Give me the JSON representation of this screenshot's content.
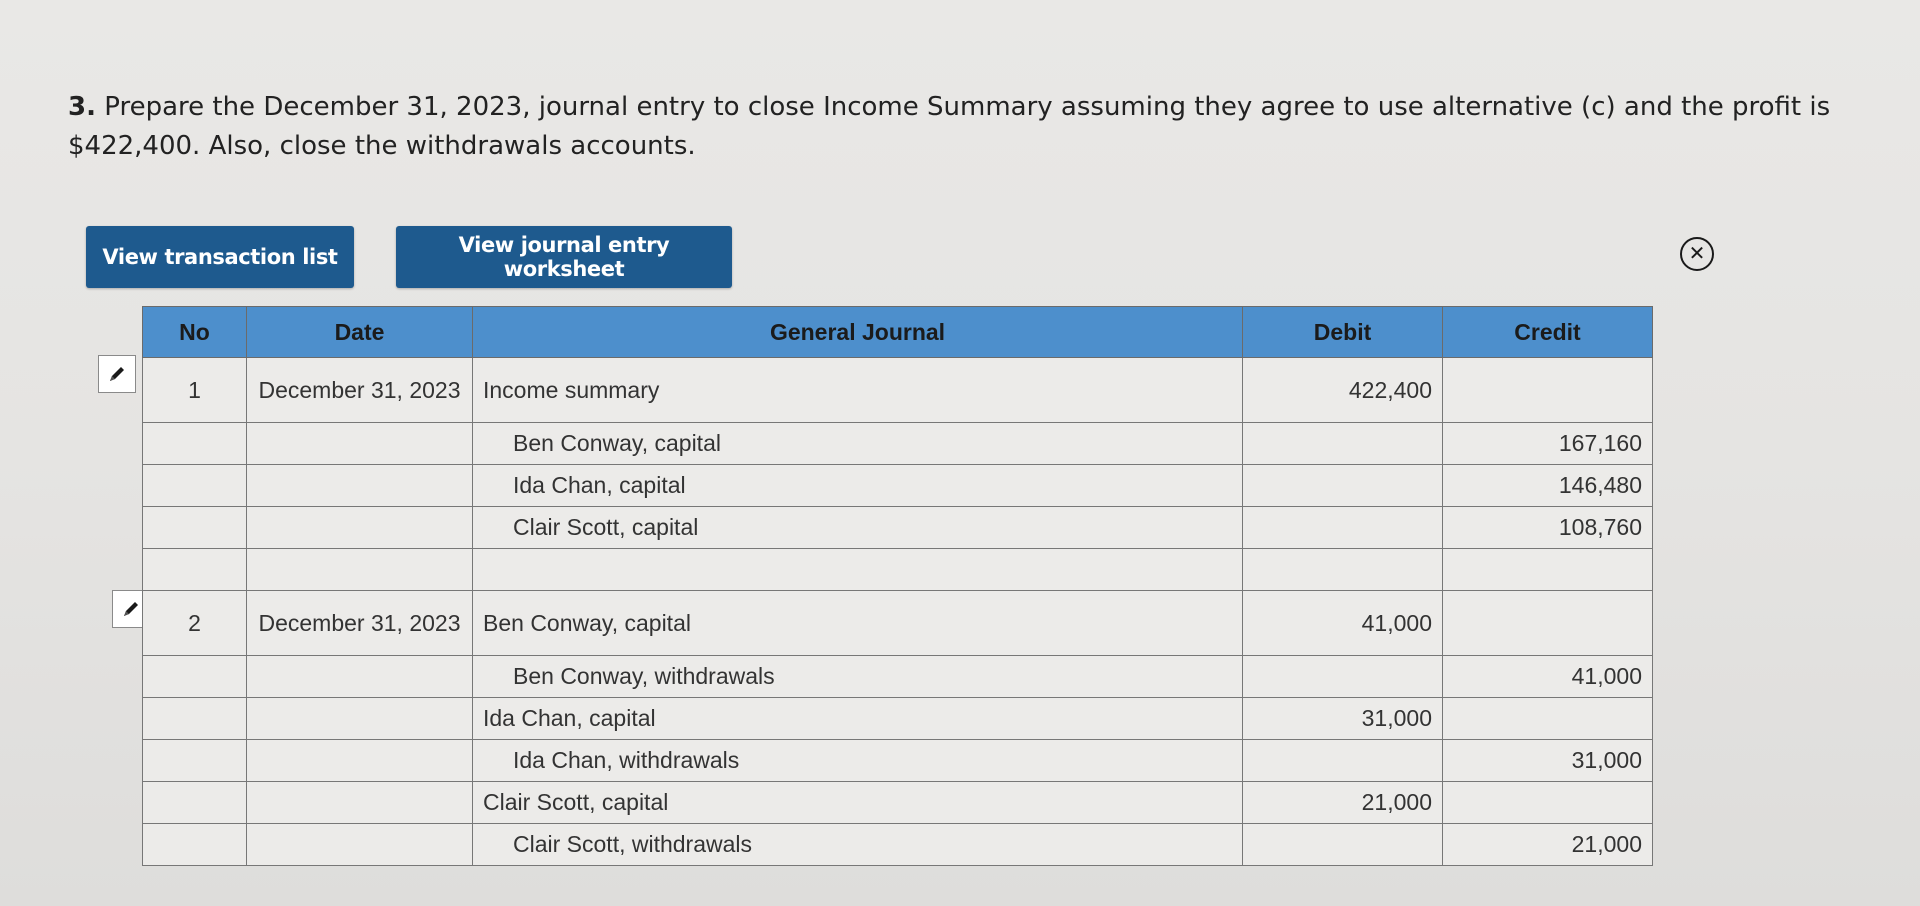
{
  "question": {
    "number": "3.",
    "text": "Prepare the December 31, 2023, journal entry to close Income Summary assuming they agree to use alternative (c) and the profit is $422,400. Also, close the withdrawals accounts."
  },
  "toolbar": {
    "view_transaction_list": "View transaction list",
    "view_journal_worksheet": "View journal entry worksheet"
  },
  "icons": {
    "close": "close-circle-icon",
    "edit": "pencil-icon"
  },
  "table": {
    "headers": {
      "no": "No",
      "date": "Date",
      "general_journal": "General Journal",
      "debit": "Debit",
      "credit": "Credit"
    },
    "rows": [
      {
        "no": "1",
        "date": "December 31, 2023",
        "account": "Income summary",
        "debit": "422,400",
        "credit": ""
      },
      {
        "no": "",
        "date": "",
        "account": "Ben Conway, capital",
        "debit": "",
        "credit": "167,160"
      },
      {
        "no": "",
        "date": "",
        "account": "Ida Chan, capital",
        "debit": "",
        "credit": "146,480"
      },
      {
        "no": "",
        "date": "",
        "account": "Clair Scott, capital",
        "debit": "",
        "credit": "108,760"
      },
      {
        "no": "",
        "date": "",
        "account": "",
        "debit": "",
        "credit": ""
      },
      {
        "no": "2",
        "date": "December 31, 2023",
        "account": "Ben Conway, capital",
        "debit": "41,000",
        "credit": ""
      },
      {
        "no": "",
        "date": "",
        "account": "Ben Conway, withdrawals",
        "debit": "",
        "credit": "41,000"
      },
      {
        "no": "",
        "date": "",
        "account": "Ida Chan, capital",
        "debit": "31,000",
        "credit": ""
      },
      {
        "no": "",
        "date": "",
        "account": "Ida Chan, withdrawals",
        "debit": "",
        "credit": "31,000"
      },
      {
        "no": "",
        "date": "",
        "account": "Clair Scott, capital",
        "debit": "21,000",
        "credit": ""
      },
      {
        "no": "",
        "date": "",
        "account": "Clair Scott, withdrawals",
        "debit": "",
        "credit": "21,000"
      }
    ]
  }
}
